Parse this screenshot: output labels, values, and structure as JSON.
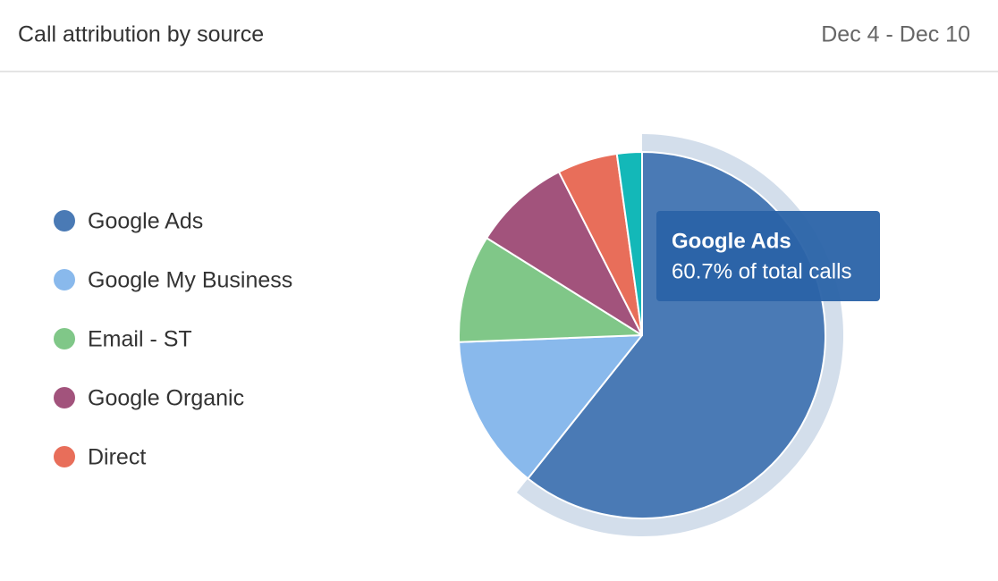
{
  "chart_data": {
    "type": "pie",
    "title": "Call attribution by source",
    "date_range": "Dec 4 - Dec 10",
    "categories": [
      "Google Ads",
      "Google My Business",
      "Email - ST",
      "Google Organic",
      "Direct",
      null
    ],
    "values": [
      60.7,
      13.7,
      9.5,
      8.6,
      5.3,
      2.2
    ],
    "colors": [
      "#4a7ab5",
      "#89b9ec",
      "#80c788",
      "#a2537c",
      "#e86e5a",
      "#13b8b8"
    ],
    "tooltip": "60.7% of total calls"
  }
}
